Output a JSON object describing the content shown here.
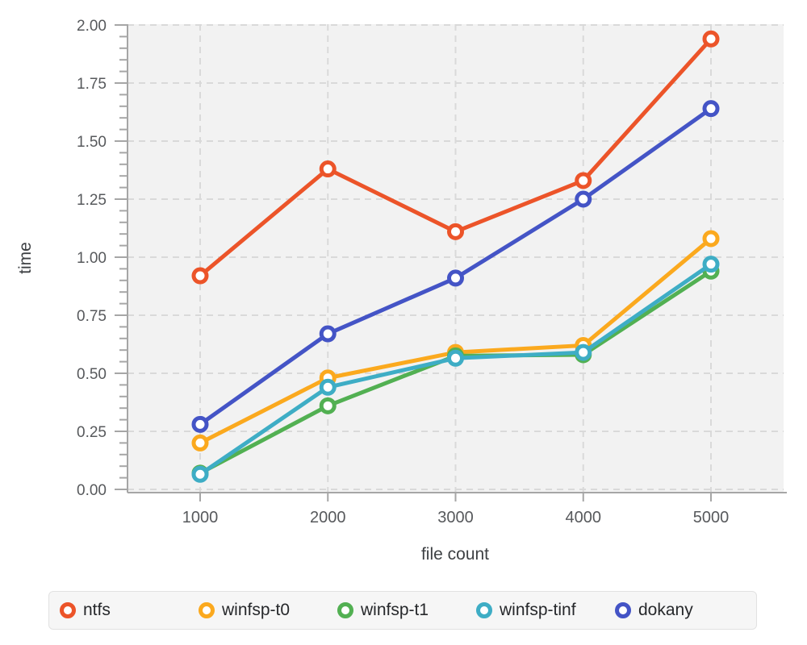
{
  "chart_data": {
    "type": "line",
    "title": "",
    "xlabel": "file count",
    "ylabel": "time",
    "x": [
      1000,
      2000,
      3000,
      4000,
      5000
    ],
    "series": [
      {
        "name": "ntfs",
        "color": "#ec5429",
        "values": [
          0.92,
          1.38,
          1.11,
          1.33,
          1.94
        ]
      },
      {
        "name": "winfsp-t0",
        "color": "#fba91e",
        "values": [
          0.2,
          0.48,
          0.59,
          0.62,
          1.08
        ]
      },
      {
        "name": "winfsp-t1",
        "color": "#52b052",
        "values": [
          0.07,
          0.36,
          0.575,
          0.58,
          0.94
        ]
      },
      {
        "name": "winfsp-tinf",
        "color": "#3eadc5",
        "values": [
          0.065,
          0.44,
          0.565,
          0.59,
          0.97
        ]
      },
      {
        "name": "dokany",
        "color": "#4454c6",
        "values": [
          0.28,
          0.67,
          0.91,
          1.25,
          1.64
        ]
      }
    ],
    "xlim": [
      1000,
      5000
    ],
    "ylim": [
      0,
      2
    ],
    "xticks": {
      "values": [
        1000,
        2000,
        3000,
        4000,
        5000
      ],
      "labels": [
        "1000",
        "2000",
        "3000",
        "4000",
        "5000"
      ]
    },
    "yticks": {
      "values": [
        0,
        0.25,
        0.5,
        0.75,
        1.0,
        1.25,
        1.5,
        1.75,
        2.0
      ],
      "labels": [
        "0.00",
        "0.25",
        "0.50",
        "0.75",
        "1.00",
        "1.25",
        "1.50",
        "1.75",
        "2.00"
      ],
      "minor_step": 0.05
    },
    "grid": true,
    "legend_position": "bottom",
    "style": {
      "plot_bg": "#f2f2f2",
      "grid_color": "#d9d9d9",
      "axis_color": "#a6a6a6",
      "marker_fill": "#ffffff"
    }
  }
}
